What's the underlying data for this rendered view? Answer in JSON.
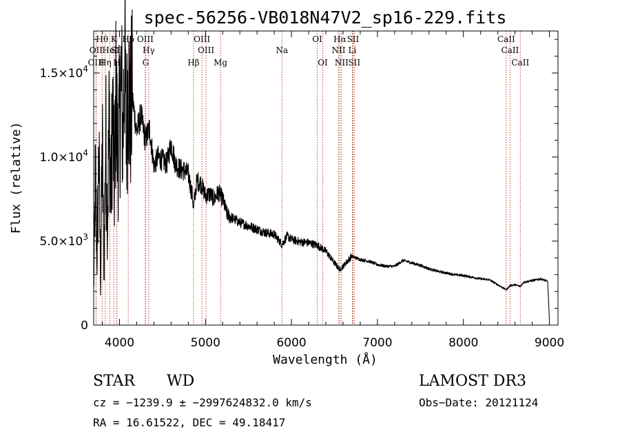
{
  "chart_data": {
    "type": "line",
    "title": "spec-56256-VB018N47V2_sp16-229.fits",
    "xlabel": "Wavelength (Å)",
    "ylabel": "Flux (relative)",
    "xlim": [
      3700,
      9100
    ],
    "ylim": [
      0,
      17500
    ],
    "x_ticks": [
      {
        "value": 4000,
        "label": "4000"
      },
      {
        "value": 5000,
        "label": "5000"
      },
      {
        "value": 6000,
        "label": "6000"
      },
      {
        "value": 7000,
        "label": "7000"
      },
      {
        "value": 8000,
        "label": "8000"
      },
      {
        "value": 9000,
        "label": "9000"
      }
    ],
    "y_ticks": [
      {
        "value": 0,
        "mant": "0",
        "exp": ""
      },
      {
        "value": 5000,
        "mant": "5.0×10",
        "exp": "3"
      },
      {
        "value": 10000,
        "mant": "1.0×10",
        "exp": "4"
      },
      {
        "value": 15000,
        "mant": "1.5×10",
        "exp": "4"
      }
    ],
    "series": [
      {
        "name": "flux",
        "x": [
          3700,
          3720,
          3740,
          3760,
          3780,
          3800,
          3820,
          3840,
          3860,
          3880,
          3900,
          3920,
          3940,
          3960,
          3980,
          4000,
          4020,
          4040,
          4060,
          4080,
          4100,
          4120,
          4150,
          4200,
          4250,
          4300,
          4350,
          4400,
          4450,
          4500,
          4550,
          4600,
          4650,
          4700,
          4750,
          4800,
          4850,
          4861,
          4880,
          4900,
          4950,
          5000,
          5050,
          5100,
          5150,
          5200,
          5250,
          5300,
          5400,
          5500,
          5600,
          5700,
          5800,
          5890,
          5950,
          6000,
          6100,
          6200,
          6300,
          6400,
          6500,
          6563,
          6600,
          6700,
          6800,
          6900,
          7000,
          7100,
          7200,
          7300,
          7400,
          7500,
          7600,
          7700,
          7800,
          7900,
          8000,
          8100,
          8200,
          8300,
          8400,
          8498,
          8542,
          8600,
          8662,
          8700,
          8800,
          8900,
          8980,
          9000
        ],
        "y": [
          2000,
          9000,
          4000,
          10500,
          2500,
          11000,
          3000,
          11500,
          6000,
          12500,
          7500,
          13000,
          8000,
          14000,
          10000,
          12000,
          14500,
          11000,
          16800,
          10500,
          15000,
          12500,
          13500,
          11500,
          12500,
          11000,
          11700,
          9500,
          10000,
          9800,
          9600,
          10800,
          9600,
          9300,
          9200,
          9000,
          7600,
          6900,
          7800,
          8600,
          8400,
          7700,
          7800,
          7500,
          7900,
          7500,
          6600,
          6400,
          6100,
          5900,
          5700,
          5500,
          5400,
          4800,
          5300,
          5100,
          4950,
          4900,
          4750,
          4400,
          3700,
          3300,
          3500,
          4100,
          3900,
          3800,
          3600,
          3500,
          3500,
          3850,
          3700,
          3550,
          3350,
          3200,
          3100,
          3000,
          2950,
          2850,
          2750,
          2700,
          2400,
          2100,
          2350,
          2400,
          2300,
          2550,
          2650,
          2750,
          2600,
          300
        ]
      }
    ],
    "lines": [
      {
        "name": "OII",
        "x": 3727,
        "row": 2
      },
      {
        "name": "OIII",
        "x": 3729,
        "row": 3
      },
      {
        "name": "Hθ",
        "x": 3798,
        "row": 1
      },
      {
        "name": "Hη",
        "x": 3835,
        "row": 3
      },
      {
        "name": "HeI",
        "x": 3889,
        "row": 2
      },
      {
        "name": "K",
        "x": 3934,
        "row": 1
      },
      {
        "name": "SII",
        "x": 3969,
        "row": 2
      },
      {
        "name": "H",
        "x": 3970,
        "row": 3
      },
      {
        "name": "Hδ",
        "x": 4102,
        "row": 1
      },
      {
        "name": "OIII",
        "x": 4300,
        "row": 1
      },
      {
        "name": "G",
        "x": 4304,
        "row": 3
      },
      {
        "name": "Hγ",
        "x": 4340,
        "row": 2
      },
      {
        "name": "Hβ",
        "x": 4861,
        "row": 3
      },
      {
        "name": "OIII",
        "x": 4959,
        "row": 1
      },
      {
        "name": "OIII",
        "x": 5007,
        "row": 2
      },
      {
        "name": "Mg",
        "x": 5175,
        "row": 3
      },
      {
        "name": "Na",
        "x": 5890,
        "row": 2
      },
      {
        "name": "OI",
        "x": 6300,
        "row": 1
      },
      {
        "name": "OI",
        "x": 6364,
        "row": 3
      },
      {
        "name": "NII",
        "x": 6548,
        "row": 2
      },
      {
        "name": "Hα",
        "x": 6563,
        "row": 1
      },
      {
        "name": "NII",
        "x": 6583,
        "row": 3
      },
      {
        "name": "SII",
        "x": 6716,
        "row": 1
      },
      {
        "name": "Li",
        "x": 6708,
        "row": 2
      },
      {
        "name": "SII",
        "x": 6731,
        "row": 3
      },
      {
        "name": "CaII",
        "x": 8498,
        "row": 1
      },
      {
        "name": "CaII",
        "x": 8542,
        "row": 2
      },
      {
        "name": "CaII",
        "x": 8662,
        "row": 3
      }
    ]
  },
  "info": {
    "class_label": "STAR",
    "subclass": "WD",
    "survey": "LAMOST DR3",
    "cz_line": "cz = −1239.9 ± −2997624832.0 km/s",
    "obs_date": "Obs−Date: 20121124",
    "coord_line": "RA =  16.61522, DEC =  49.18417"
  }
}
